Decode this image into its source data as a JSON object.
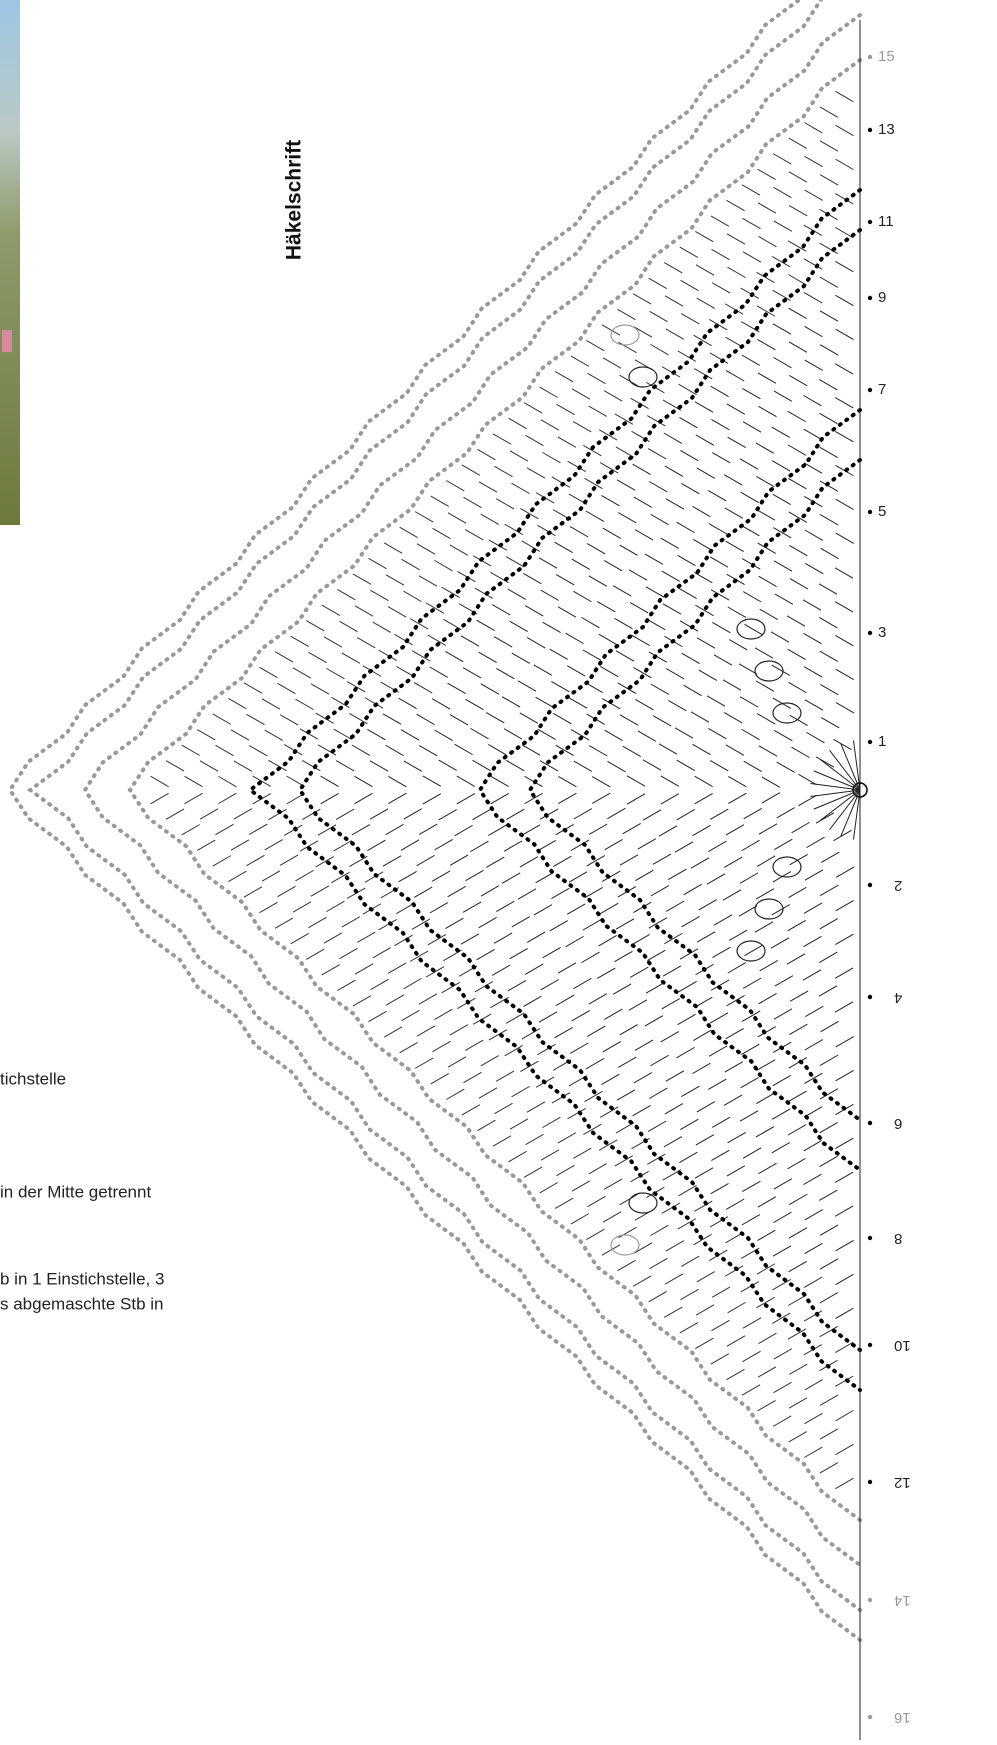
{
  "title": "Häkelschrift",
  "row_labels_top": [
    "15",
    "13",
    "11",
    "9",
    "7",
    "5",
    "3",
    "1"
  ],
  "row_labels_bottom": [
    "2",
    "4",
    "6",
    "8",
    "10",
    "12",
    "14",
    "16"
  ],
  "legend_fragments": [
    "tichstelle",
    "in der  Mitte getrennt",
    "b in 1 Einstichstelle, 3",
    "s abgemaschte Stb in"
  ]
}
